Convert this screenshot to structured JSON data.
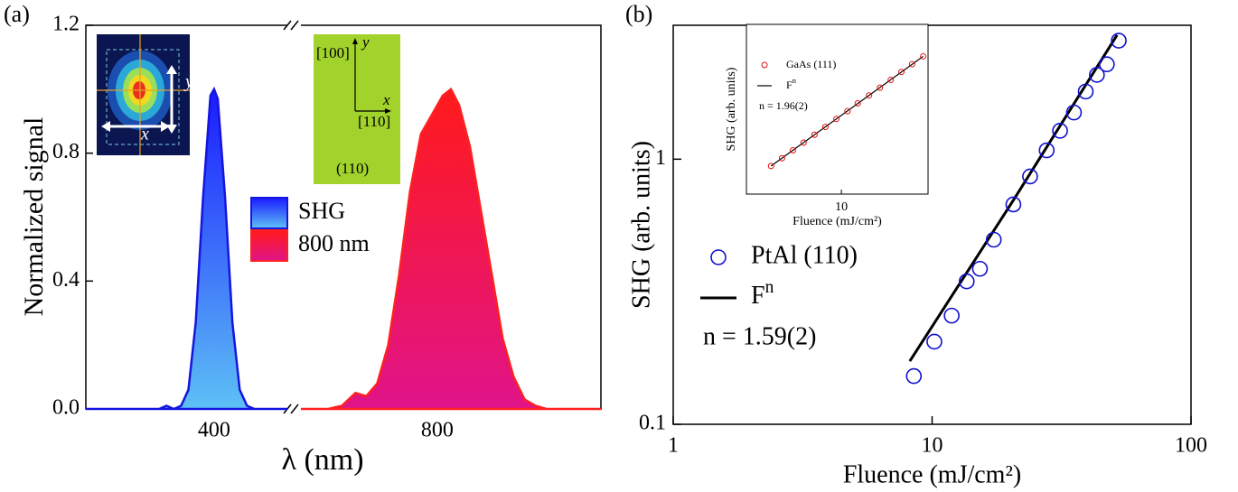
{
  "chart_data": [
    {
      "type": "area",
      "panel_label": "(a)",
      "x_label": "λ (nm)",
      "y_label": "Normalized signal",
      "xlim_segments": [
        [
          330,
          440
        ],
        [
          700,
          920
        ]
      ],
      "xticks": [
        400,
        800
      ],
      "ylim": [
        0,
        1.2
      ],
      "yticks": [
        {
          "value": 0,
          "label": "0.0"
        },
        0.4,
        0.8,
        1.2
      ],
      "series": [
        {
          "name": "SHG",
          "color": "#1515e0",
          "gradient": [
            "#1a1aff",
            "#5ec0f5"
          ],
          "x": [
            330,
            370,
            374,
            378,
            382,
            386,
            390,
            394,
            398,
            400,
            402,
            406,
            410,
            414,
            418,
            422,
            440
          ],
          "values": [
            0,
            0,
            0.01,
            0,
            0.01,
            0.06,
            0.27,
            0.66,
            0.98,
            1.0,
            0.97,
            0.66,
            0.27,
            0.06,
            0.01,
            0,
            0
          ]
        },
        {
          "name": "800 nm",
          "color": "#ff2020",
          "gradient": [
            "#ff1a1a",
            "#e0148a"
          ],
          "x": [
            700,
            720,
            730,
            740,
            748,
            756,
            764,
            772,
            780,
            788,
            796,
            804,
            810,
            816,
            824,
            832,
            840,
            848,
            856,
            864,
            872,
            880,
            920
          ],
          "values": [
            0,
            0,
            0.01,
            0.05,
            0.04,
            0.08,
            0.2,
            0.42,
            0.68,
            0.86,
            0.92,
            0.98,
            1.0,
            0.95,
            0.82,
            0.62,
            0.42,
            0.22,
            0.1,
            0.03,
            0.01,
            0,
            0
          ]
        }
      ],
      "image_inset_labels": [
        "y",
        "x"
      ],
      "crystal_inset_labels": [
        "[100]",
        "y",
        "x",
        "[110]",
        "(110)"
      ]
    },
    {
      "type": "scatter",
      "panel_label": "(b)",
      "x_label": "Fluence (mJ/cm²)",
      "y_label": "SHG (arb. units)",
      "log_x": true,
      "log_y": true,
      "xlim": [
        1,
        100
      ],
      "xticks": [
        1,
        10,
        100
      ],
      "ylim": [
        0.1,
        3.2
      ],
      "yticks": [
        0.1,
        1
      ],
      "series": [
        {
          "name": "PtAl (110)",
          "color": "#1010d0",
          "x": [
            8.5,
            10.2,
            11.9,
            13.6,
            15.3,
            17.3,
            20.6,
            23.9,
            27.7,
            31.2,
            35.3,
            39.2,
            43.3,
            47.3,
            52.6
          ],
          "values": [
            0.152,
            0.205,
            0.257,
            0.346,
            0.386,
            0.497,
            0.675,
            0.861,
            1.08,
            1.28,
            1.5,
            1.8,
            2.08,
            2.28,
            2.8
          ]
        }
      ],
      "fit": {
        "name": "F",
        "name_superscript": "n",
        "color": "#000000",
        "x": [
          8.2,
          20.6,
          51.8
        ],
        "values": [
          0.173,
          0.7,
          2.94
        ]
      },
      "annotation": "n = 1.59(2)"
    },
    {
      "type": "scatter",
      "x_label": "Fluence (mJ/cm²)",
      "y_label": "SHG (arb. units)",
      "log_x": true,
      "log_y": true,
      "xlim": [
        3,
        30
      ],
      "xticks": [
        10
      ],
      "ylim": [
        0.38,
        132
      ],
      "series": [
        {
          "name": "GaAs (111)",
          "color": "#e01010",
          "x": [
            4.1,
            4.71,
            5.41,
            6.19,
            7.11,
            8.17,
            9.38,
            10.8,
            12.3,
            14.2,
            16.3,
            18.7,
            21.4,
            24.5,
            28.2
          ],
          "values": [
            1.0,
            1.31,
            1.72,
            2.24,
            2.94,
            3.85,
            5.06,
            6.62,
            8.67,
            11.4,
            14.9,
            19.5,
            25.6,
            33.5,
            43.8
          ]
        }
      ],
      "fit": {
        "name": "F",
        "name_superscript": "n",
        "color": "#000000",
        "x": [
          4.1,
          28.2
        ],
        "values": [
          1.0,
          43.8
        ]
      },
      "annotation": "n = 1.96(2)"
    }
  ]
}
